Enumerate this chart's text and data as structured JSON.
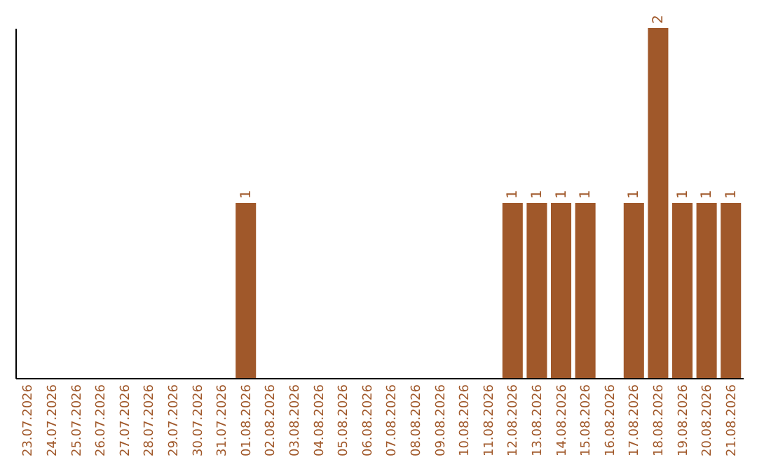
{
  "chart_data": {
    "type": "bar",
    "categories": [
      "23.07.2026",
      "24.07.2026",
      "25.07.2026",
      "26.07.2026",
      "27.07.2026",
      "28.07.2026",
      "29.07.2026",
      "30.07.2026",
      "31.07.2026",
      "01.08.2026",
      "02.08.2026",
      "03.08.2026",
      "04.08.2026",
      "05.08.2026",
      "06.08.2026",
      "07.08.2026",
      "08.08.2026",
      "09.08.2026",
      "10.08.2026",
      "11.08.2026",
      "12.08.2026",
      "13.08.2026",
      "14.08.2026",
      "15.08.2026",
      "16.08.2026",
      "17.08.2026",
      "18.08.2026",
      "19.08.2026",
      "20.08.2026",
      "21.08.2026"
    ],
    "values": [
      0,
      0,
      0,
      0,
      0,
      0,
      0,
      0,
      0,
      1,
      0,
      0,
      0,
      0,
      0,
      0,
      0,
      0,
      0,
      0,
      1,
      1,
      1,
      1,
      0,
      1,
      2,
      1,
      1,
      1
    ],
    "value_labels": [
      null,
      null,
      null,
      null,
      null,
      null,
      null,
      null,
      null,
      "1",
      null,
      null,
      null,
      null,
      null,
      null,
      null,
      null,
      null,
      null,
      "1",
      "1",
      "1",
      "1",
      null,
      "1",
      "2",
      "1",
      "1",
      "1"
    ],
    "color": "#a0582a",
    "tick_labels": "x",
    "grid": false
  }
}
